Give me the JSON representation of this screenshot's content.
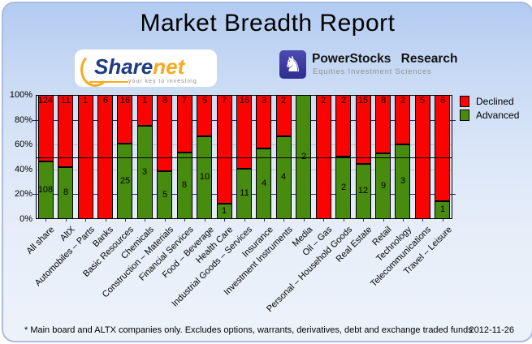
{
  "logos": {
    "sharenet": {
      "name_part1": "Share",
      "name_part2": "net",
      "tagline": "your key to investing"
    },
    "powerstocks": {
      "knight_glyph": "♞",
      "title": "PowerStocks Research",
      "subtitle": "Equities Investment Sciences"
    }
  },
  "chart_data": {
    "type": "bar",
    "stacked": true,
    "unit": "percent_of_total",
    "title": "Market Breadth Report",
    "categories": [
      "All share",
      "AltX",
      "Automobiles – Parts",
      "Banks",
      "Basic Resources",
      "Chemicals",
      "Construction – Materials",
      "Financial Services",
      "Food – Beverage",
      "Health Care",
      "Industrial Goods – Services",
      "Insurance",
      "Investment Instruments",
      "Media",
      "Oil – Gas",
      "Personal – Household Goods",
      "Real Estate",
      "Retail",
      "Technology",
      "Telecommunications",
      "Travel – Leisure"
    ],
    "series": [
      {
        "name": "Declined",
        "color": "#f90400",
        "values": [
          124,
          11,
          1,
          6,
          16,
          1,
          8,
          7,
          5,
          7,
          16,
          3,
          2,
          0,
          2,
          2,
          15,
          8,
          2,
          5,
          6
        ]
      },
      {
        "name": "Advanced",
        "color": "#478b0f",
        "values": [
          108,
          8,
          0,
          0,
          25,
          3,
          5,
          8,
          10,
          1,
          11,
          4,
          4,
          2,
          0,
          2,
          12,
          9,
          3,
          0,
          1
        ]
      }
    ],
    "y_ticks": [
      "100%",
      "80%",
      "60%",
      "40%",
      "20%",
      "0%"
    ],
    "ylim": [
      0,
      100
    ],
    "gridlines": {
      "major_color": "#26268c",
      "minor_color": "#c0c0c0",
      "reference_line_pct": 50
    },
    "legend_position": "top-right"
  },
  "footer": {
    "note": "* Main board and ALTX companies only. Excludes options, warrants, derivatives, debt and exchange traded funds",
    "date": "2012-11-26"
  }
}
